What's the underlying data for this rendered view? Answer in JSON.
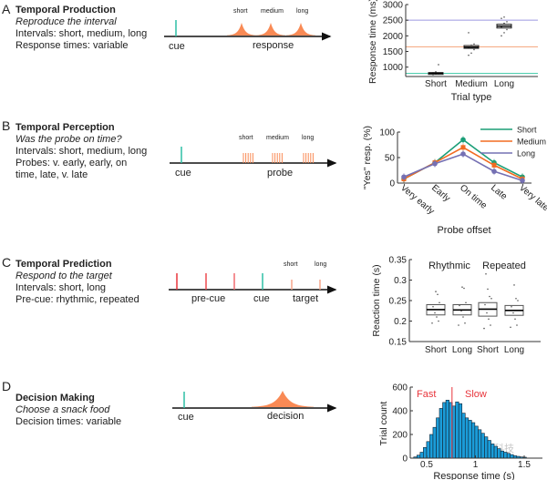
{
  "colors": {
    "short": "#1a9e77",
    "medium": "#f26b21",
    "long": "#7570b3",
    "cue": "#2ebfa5",
    "peak": "#f98a55",
    "precue": "#e8343b",
    "bar": "#1b9dd9",
    "divider": "#e8343b"
  },
  "panels": [
    {
      "letter": "A",
      "title": "Temporal Production",
      "subtitle": "Reproduce the interval",
      "lines": [
        "Intervals: short, medium, long",
        "Response times: variable"
      ],
      "diagram": {
        "cue": "cue",
        "event": "response",
        "labels": [
          "short",
          "medium",
          "long"
        ]
      }
    },
    {
      "letter": "B",
      "title": "Temporal Perception",
      "subtitle": "Was the probe on time?",
      "lines": [
        "Intervals: short, medium, long",
        "Probes: v. early, early, on time, late, v. late"
      ],
      "diagram": {
        "cue": "cue",
        "event": "probe",
        "labels": [
          "short",
          "medium",
          "long"
        ]
      }
    },
    {
      "letter": "C",
      "title": "Temporal Prediction",
      "subtitle": "Respond to the target",
      "lines": [
        "Intervals: short, long",
        "Pre-cue: rhythmic, repeated"
      ],
      "diagram": {
        "precue": "pre-cue",
        "cue": "cue",
        "event": "target",
        "labels": [
          "short",
          "long"
        ]
      }
    },
    {
      "letter": "D",
      "title": "Decision Making",
      "subtitle": "Choose a snack food",
      "lines": [
        "Decision times: variable"
      ],
      "diagram": {
        "cue": "cue",
        "event": "decision"
      }
    }
  ],
  "watermark": "茗创科技",
  "chart_data": [
    {
      "type": "box",
      "xlabel": "Trial type",
      "ylabel": "Response time (ms)",
      "categories": [
        "Short",
        "Medium",
        "Long"
      ],
      "yticks": [
        1000,
        1500,
        2000,
        2500,
        3000
      ],
      "ylim": [
        700,
        3000
      ],
      "reference_lines": [
        {
          "value": 2500,
          "color": "#9b98e0"
        },
        {
          "value": 1650,
          "color": "#f4a27a"
        },
        {
          "value": 800,
          "color": "#3cc9a6"
        }
      ],
      "boxes": [
        {
          "q1": 780,
          "median": 805,
          "q3": 825,
          "points": [
            760,
            790,
            800,
            820,
            850,
            1080
          ]
        },
        {
          "q1": 1600,
          "median": 1640,
          "q3": 1690,
          "points": [
            1380,
            1450,
            1560,
            1620,
            1700,
            1740,
            2100
          ]
        },
        {
          "q1": 2250,
          "median": 2310,
          "q3": 2370,
          "points": [
            2000,
            2100,
            2200,
            2280,
            2400,
            2450,
            2560,
            2600
          ]
        }
      ]
    },
    {
      "type": "line",
      "xlabel": "Probe offset",
      "ylabel": "\"Yes\" resp. (%)",
      "categories": [
        "Very early",
        "Early",
        "On time",
        "Late",
        "Very late"
      ],
      "yticks": [
        0,
        50,
        100
      ],
      "ylim": [
        0,
        100
      ],
      "legend": "top-right",
      "series": [
        {
          "name": "Short",
          "color": "#1a9e77",
          "values": [
            8,
            40,
            85,
            40,
            12
          ]
        },
        {
          "name": "Medium",
          "color": "#f26b21",
          "values": [
            8,
            40,
            70,
            35,
            8
          ]
        },
        {
          "name": "Long",
          "color": "#7570b3",
          "values": [
            12,
            38,
            57,
            23,
            5
          ]
        }
      ]
    },
    {
      "type": "box",
      "ylabel": "Reaction time (s)",
      "groups": [
        "Rhythmic",
        "Repeated"
      ],
      "categories": [
        "Short",
        "Long",
        "Short",
        "Long"
      ],
      "yticks": [
        0.15,
        0.2,
        0.25,
        0.3,
        0.35
      ],
      "ylim": [
        0.15,
        0.35
      ],
      "boxes": [
        {
          "q1": 0.215,
          "median": 0.228,
          "q3": 0.24,
          "points": [
            0.195,
            0.2,
            0.21,
            0.22,
            0.235,
            0.245,
            0.265,
            0.272
          ]
        },
        {
          "q1": 0.215,
          "median": 0.227,
          "q3": 0.24,
          "points": [
            0.19,
            0.195,
            0.21,
            0.225,
            0.238,
            0.245,
            0.28,
            0.283
          ]
        },
        {
          "q1": 0.212,
          "median": 0.229,
          "q3": 0.245,
          "points": [
            0.182,
            0.19,
            0.205,
            0.22,
            0.24,
            0.255,
            0.26,
            0.278,
            0.315
          ]
        },
        {
          "q1": 0.214,
          "median": 0.226,
          "q3": 0.238,
          "points": [
            0.185,
            0.19,
            0.205,
            0.22,
            0.235,
            0.25,
            0.255,
            0.288
          ]
        }
      ]
    },
    {
      "type": "histogram",
      "xlabel": "Response time (s)",
      "ylabel": "Trial count",
      "xticks": [
        0.5,
        1,
        1.5
      ],
      "yticks": [
        0,
        200,
        400,
        600
      ],
      "xlim": [
        0.33,
        1.72
      ],
      "ylim": [
        0,
        600
      ],
      "bin_start": 0.367,
      "bin_width": 0.033,
      "values": [
        10,
        25,
        50,
        90,
        140,
        200,
        260,
        340,
        420,
        470,
        490,
        470,
        440,
        475,
        460,
        380,
        340,
        320,
        300,
        270,
        240,
        210,
        180,
        150,
        120,
        100,
        80,
        60,
        50,
        40,
        30,
        20,
        15,
        10,
        8
      ],
      "divider": 0.76,
      "annotations": [
        "Fast",
        "Slow"
      ]
    }
  ]
}
